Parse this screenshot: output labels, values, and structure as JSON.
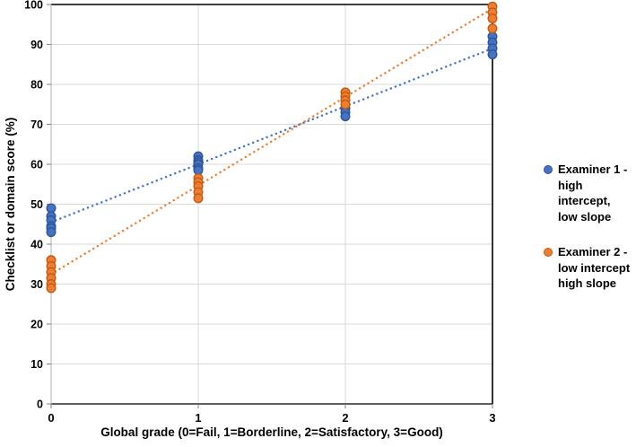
{
  "chart_data": {
    "type": "scatter",
    "title": "",
    "xlabel": "Global grade (0=Fail, 1=Borderline, 2=Satisfactory, 3=Good)",
    "ylabel": "Checklist or domain score (%)",
    "xlim": [
      0,
      3
    ],
    "ylim": [
      0,
      100
    ],
    "x_ticks": [
      0,
      1,
      2,
      3
    ],
    "y_ticks": [
      0,
      10,
      20,
      30,
      40,
      50,
      60,
      70,
      80,
      90,
      100
    ],
    "grid": true,
    "legend_position": "right",
    "colors": {
      "gridline": "#d9d9d9",
      "axis_line": "#bfbfbf",
      "border": "#000000",
      "tick": "#7f7f7f",
      "label": "#000000"
    },
    "series": [
      {
        "name": "Examiner 1 - high intercept, low slope",
        "legend_lines": [
          "Examiner 1 -",
          "high intercept,",
          "low slope"
        ],
        "marker_fill": "#4472c4",
        "marker_stroke": "#2f5597",
        "x": [
          0,
          0,
          0,
          0,
          0,
          0,
          1,
          1,
          1,
          1,
          1,
          1,
          2,
          2,
          2,
          3,
          3,
          3,
          3
        ],
        "y": [
          49,
          47,
          46,
          44.5,
          44,
          43,
          62,
          61,
          60.5,
          60,
          59,
          58.5,
          74,
          73,
          72,
          92,
          90.5,
          89,
          87.5
        ],
        "trendline": {
          "style": "dotted",
          "x": [
            0,
            3
          ],
          "y": [
            45.5,
            89
          ]
        }
      },
      {
        "name": "Examiner 2 - low intercept high slope",
        "legend_lines": [
          "Examiner 2 -",
          "low intercept",
          "high slope"
        ],
        "marker_fill": "#ed7d31",
        "marker_stroke": "#c55a11",
        "x": [
          0,
          0,
          0,
          0,
          0,
          0,
          1,
          1,
          1,
          1,
          1,
          2,
          2,
          2,
          2,
          3,
          3,
          3,
          3
        ],
        "y": [
          36,
          34.5,
          33,
          31.5,
          30,
          29,
          56.5,
          55.5,
          54.5,
          53,
          51.5,
          78,
          77,
          76,
          75,
          99.5,
          98,
          96.5,
          94
        ],
        "trendline": {
          "style": "dotted",
          "x": [
            0,
            3
          ],
          "y": [
            32.5,
            99
          ]
        }
      }
    ]
  }
}
